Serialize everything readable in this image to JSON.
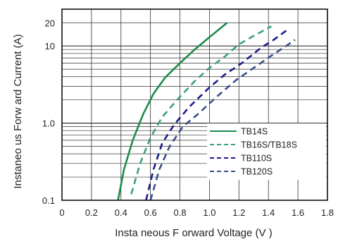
{
  "chart_data": {
    "type": "line",
    "title": "",
    "xlabel": "Insta neous F orward Voltage (V )",
    "ylabel": "Instaneo us Forw ard Current  (A)",
    "x_scale": "linear",
    "y_scale": "log",
    "xlim": [
      0,
      1.8
    ],
    "ylim": [
      0.1,
      30
    ],
    "x_ticks": [
      0,
      0.2,
      0.4,
      0.6,
      0.8,
      1.0,
      1.2,
      1.4,
      1.6,
      1.8
    ],
    "x_tick_labels": [
      "0",
      "0.2",
      "0.4",
      "0.6",
      "0.8",
      "1.0",
      "1.2",
      "1.4",
      "1.6",
      "1.8"
    ],
    "y_ticks": [
      0.1,
      1.0,
      10,
      20
    ],
    "y_tick_labels": [
      "0.1",
      "1.0",
      "10",
      "20"
    ],
    "grid": true,
    "legend_position": "lower-right",
    "series": [
      {
        "name": "TB14S",
        "color": "#1e8a4a",
        "dash": "solid",
        "points": [
          [
            0.38,
            0.1
          ],
          [
            0.42,
            0.25
          ],
          [
            0.48,
            0.6
          ],
          [
            0.55,
            1.3
          ],
          [
            0.62,
            2.4
          ],
          [
            0.7,
            3.9
          ],
          [
            0.8,
            6.0
          ],
          [
            0.9,
            9.0
          ],
          [
            1.0,
            13.0
          ],
          [
            1.12,
            20.0
          ]
        ]
      },
      {
        "name": "TB16S/TB18S",
        "color": "#3aa07a",
        "dash": "dashed",
        "points": [
          [
            0.47,
            0.12
          ],
          [
            0.53,
            0.3
          ],
          [
            0.6,
            0.65
          ],
          [
            0.68,
            1.2
          ],
          [
            0.78,
            2.0
          ],
          [
            0.9,
            3.5
          ],
          [
            1.0,
            5.2
          ],
          [
            1.1,
            7.2
          ],
          [
            1.2,
            10.5
          ],
          [
            1.3,
            13.5
          ],
          [
            1.42,
            18.0
          ]
        ]
      },
      {
        "name": "TB110S",
        "color": "#1a1a8c",
        "dash": "dashed",
        "points": [
          [
            0.57,
            0.1
          ],
          [
            0.62,
            0.25
          ],
          [
            0.68,
            0.55
          ],
          [
            0.76,
            0.95
          ],
          [
            0.86,
            1.6
          ],
          [
            1.0,
            2.9
          ],
          [
            1.1,
            4.2
          ],
          [
            1.22,
            6.0
          ],
          [
            1.35,
            9.5
          ],
          [
            1.43,
            11.8
          ],
          [
            1.52,
            15.8
          ]
        ]
      },
      {
        "name": "TB120S",
        "color": "#3a4f8a",
        "dash": "dashed",
        "points": [
          [
            0.6,
            0.1
          ],
          [
            0.66,
            0.25
          ],
          [
            0.73,
            0.5
          ],
          [
            0.82,
            0.9
          ],
          [
            0.92,
            1.3
          ],
          [
            1.05,
            2.2
          ],
          [
            1.18,
            3.6
          ],
          [
            1.3,
            5.2
          ],
          [
            1.42,
            7.5
          ],
          [
            1.52,
            10.0
          ],
          [
            1.58,
            12.0
          ]
        ]
      }
    ]
  }
}
